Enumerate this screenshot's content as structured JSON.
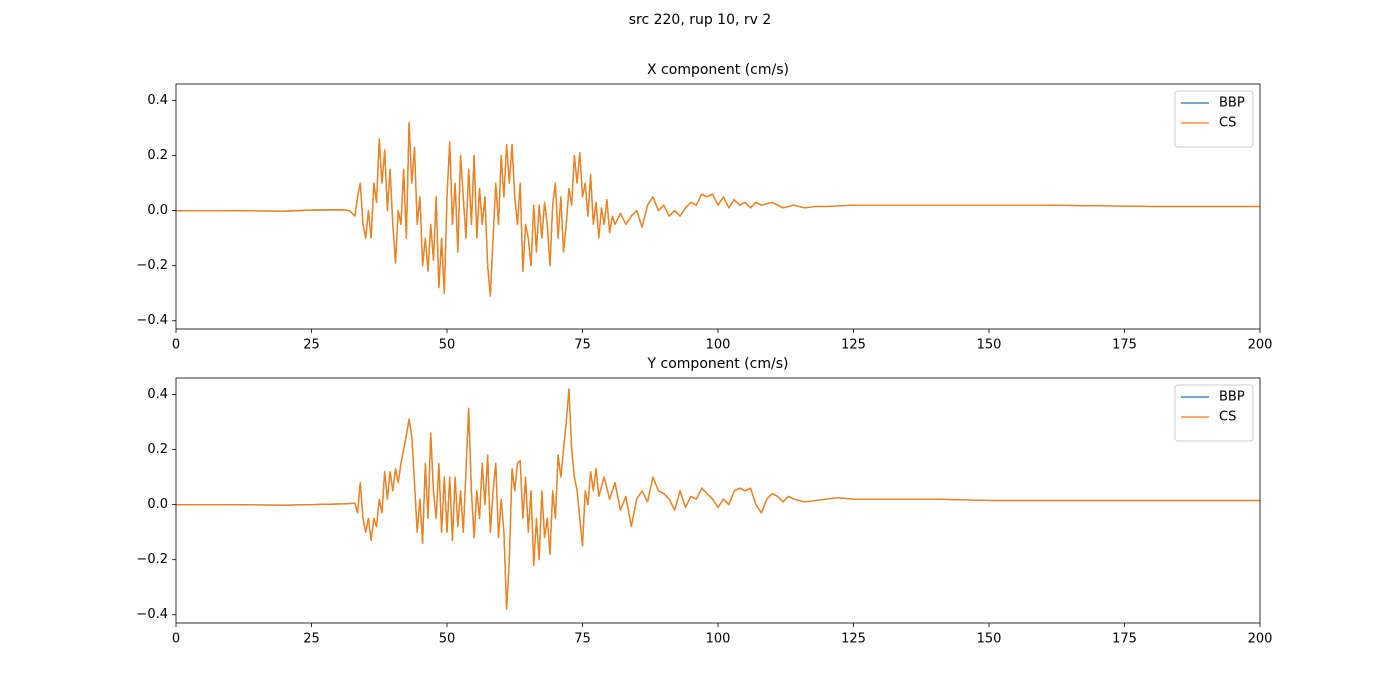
{
  "title": "src 220, rup 10, rv 2",
  "chart_data": [
    {
      "type": "line",
      "title": "X component (cm/s)",
      "legend": "upper right",
      "xlim": [
        0,
        200
      ],
      "ylim": [
        -0.43,
        0.46
      ],
      "xticks": [
        0,
        25,
        50,
        75,
        100,
        125,
        150,
        175,
        200
      ],
      "yticks": [
        {
          "value": -0.4,
          "label": "−0.4"
        },
        {
          "value": -0.2,
          "label": "−0.2"
        },
        {
          "value": 0,
          "label": "0.0"
        },
        0.2,
        0.4
      ],
      "x": [
        0,
        10,
        20,
        25,
        31,
        32,
        33,
        33.5,
        34,
        34.5,
        35,
        35.5,
        36,
        36.5,
        37,
        37.5,
        38,
        38.5,
        39,
        39.5,
        40,
        40.5,
        41,
        41.5,
        42,
        42.5,
        43,
        43.5,
        44,
        44.5,
        45,
        45.5,
        46,
        46.5,
        47,
        47.5,
        48,
        48.5,
        49,
        49.5,
        50,
        50.5,
        51,
        51.5,
        52,
        52.5,
        53,
        53.5,
        54,
        54.5,
        55,
        55.5,
        56,
        56.5,
        57,
        57.5,
        58,
        58.5,
        59,
        59.5,
        60,
        60.5,
        61,
        61.5,
        62,
        62.5,
        63,
        63.5,
        64,
        64.5,
        65,
        65.5,
        66,
        66.5,
        67,
        67.5,
        68,
        68.5,
        69,
        69.5,
        70,
        70.5,
        71,
        71.5,
        72,
        72.5,
        73,
        73.5,
        74,
        74.5,
        75,
        75.5,
        76,
        76.5,
        77,
        77.5,
        78,
        78.5,
        79,
        79.5,
        80,
        80.5,
        81,
        82,
        83,
        84,
        85,
        86,
        87,
        88,
        89,
        90,
        91,
        92,
        93,
        94,
        95,
        96,
        97,
        98,
        99,
        100,
        101,
        102,
        103,
        104,
        105,
        106,
        107,
        108,
        110,
        112,
        114,
        116,
        118,
        120,
        125,
        140,
        160,
        180,
        200
      ],
      "series": [
        {
          "name": "BBP",
          "color": "#1f77b4",
          "values": [
            0,
            0,
            -0.002,
            0.002,
            0.003,
            0,
            -0.02,
            0.05,
            0.1,
            -0.05,
            -0.1,
            0,
            -0.1,
            0.1,
            0.03,
            0.26,
            0.1,
            0.22,
            0,
            0.15,
            -0.05,
            -0.19,
            0,
            -0.05,
            0.15,
            -0.1,
            0.32,
            0.1,
            0.23,
            -0.05,
            0.05,
            -0.2,
            -0.1,
            -0.22,
            -0.05,
            -0.18,
            0.05,
            -0.28,
            -0.1,
            -0.3,
            0.05,
            0.25,
            -0.05,
            0.1,
            -0.15,
            0.2,
            0.05,
            -0.1,
            0.15,
            -0.05,
            0.2,
            -0.1,
            0.08,
            -0.05,
            0.05,
            -0.2,
            -0.31,
            -0.1,
            0.1,
            -0.05,
            0.2,
            0.05,
            0.24,
            0.1,
            0.24,
            0.05,
            -0.05,
            0.1,
            -0.22,
            -0.05,
            -0.1,
            -0.2,
            0.02,
            -0.15,
            0.02,
            -0.1,
            0.03,
            -0.05,
            -0.2,
            0.02,
            0.1,
            -0.1,
            0.05,
            -0.15,
            -0.05,
            0.08,
            0.02,
            0.2,
            0.1,
            0.21,
            0.05,
            0.1,
            -0.02,
            0.13,
            -0.05,
            0.03,
            -0.1,
            0.01,
            -0.05,
            0.04,
            -0.08,
            -0.02,
            -0.05,
            -0.01,
            -0.05,
            -0.02,
            0,
            -0.06,
            0.02,
            0.05,
            0,
            0.02,
            -0.02,
            0,
            -0.02,
            0.01,
            0.03,
            0.02,
            0.06,
            0.05,
            0.06,
            0.02,
            0.05,
            0.01,
            0.04,
            0.02,
            0.03,
            0.01,
            0.03,
            0.02,
            0.03,
            0.01,
            0.02,
            0.01,
            0.015,
            0.015,
            0.02,
            0.02,
            0.02,
            0.015,
            0.015
          ]
        },
        {
          "name": "CS",
          "color": "#ff7f0e",
          "values": [
            0,
            0,
            -0.002,
            0.002,
            0.003,
            0,
            -0.02,
            0.05,
            0.1,
            -0.05,
            -0.1,
            0,
            -0.1,
            0.1,
            0.03,
            0.26,
            0.1,
            0.22,
            0,
            0.15,
            -0.05,
            -0.19,
            0,
            -0.05,
            0.15,
            -0.1,
            0.32,
            0.1,
            0.23,
            -0.05,
            0.05,
            -0.2,
            -0.1,
            -0.22,
            -0.05,
            -0.18,
            0.05,
            -0.28,
            -0.1,
            -0.3,
            0.05,
            0.25,
            -0.05,
            0.1,
            -0.15,
            0.2,
            0.05,
            -0.1,
            0.15,
            -0.05,
            0.2,
            -0.1,
            0.08,
            -0.05,
            0.05,
            -0.2,
            -0.31,
            -0.1,
            0.1,
            -0.05,
            0.2,
            0.05,
            0.24,
            0.1,
            0.24,
            0.05,
            -0.05,
            0.1,
            -0.22,
            -0.05,
            -0.1,
            -0.2,
            0.02,
            -0.15,
            0.02,
            -0.1,
            0.03,
            -0.05,
            -0.2,
            0.02,
            0.1,
            -0.1,
            0.05,
            -0.15,
            -0.05,
            0.08,
            0.02,
            0.2,
            0.1,
            0.21,
            0.05,
            0.1,
            -0.02,
            0.13,
            -0.05,
            0.03,
            -0.1,
            0.01,
            -0.05,
            0.04,
            -0.08,
            -0.02,
            -0.05,
            -0.01,
            -0.05,
            -0.02,
            0,
            -0.06,
            0.02,
            0.05,
            0,
            0.02,
            -0.02,
            0,
            -0.02,
            0.01,
            0.03,
            0.02,
            0.06,
            0.05,
            0.06,
            0.02,
            0.05,
            0.01,
            0.04,
            0.02,
            0.03,
            0.01,
            0.03,
            0.02,
            0.03,
            0.01,
            0.02,
            0.01,
            0.015,
            0.015,
            0.02,
            0.02,
            0.02,
            0.015,
            0.015
          ]
        }
      ]
    },
    {
      "type": "line",
      "title": "Y component (cm/s)",
      "legend": "upper right",
      "xlim": [
        0,
        200
      ],
      "ylim": [
        -0.43,
        0.46
      ],
      "xticks": [
        0,
        25,
        50,
        75,
        100,
        125,
        150,
        175,
        200
      ],
      "yticks": [
        {
          "value": -0.4,
          "label": "−0.4"
        },
        {
          "value": -0.2,
          "label": "−0.2"
        },
        {
          "value": 0,
          "label": "0.0"
        },
        0.2,
        0.4
      ],
      "x": [
        0,
        10,
        20,
        25,
        31,
        33,
        33.5,
        34,
        34.5,
        35,
        35.5,
        36,
        36.5,
        37,
        37.5,
        38,
        38.5,
        39,
        39.5,
        40,
        40.5,
        41,
        41.5,
        42,
        42.5,
        43,
        43.5,
        44,
        44.5,
        45,
        45.5,
        46,
        46.5,
        47,
        47.5,
        48,
        48.5,
        49,
        49.5,
        50,
        50.5,
        51,
        51.5,
        52,
        52.5,
        53,
        53.5,
        54,
        54.5,
        55,
        55.5,
        56,
        56.5,
        57,
        57.5,
        58,
        58.5,
        59,
        59.5,
        60,
        60.5,
        61,
        61.5,
        62,
        62.5,
        63,
        63.5,
        64,
        64.5,
        65,
        65.5,
        66,
        66.5,
        67,
        67.5,
        68,
        68.5,
        69,
        69.5,
        70,
        70.5,
        71,
        71.5,
        72,
        72.5,
        73,
        73.5,
        74,
        74.5,
        75,
        75.5,
        76,
        76.5,
        77,
        77.5,
        78,
        79,
        80,
        81,
        82,
        83,
        84,
        85,
        86,
        87,
        88,
        89,
        90,
        91,
        92,
        93,
        94,
        95,
        96,
        97,
        98,
        99,
        100,
        101,
        102,
        103,
        104,
        105,
        106,
        107,
        108,
        109,
        110,
        111,
        112,
        113,
        114,
        116,
        118,
        120,
        122,
        125,
        140,
        150,
        175,
        200
      ],
      "series": [
        {
          "name": "BBP",
          "color": "#1f77b4",
          "values": [
            0,
            0,
            -0.002,
            0,
            0.003,
            0.005,
            -0.03,
            0.08,
            -0.05,
            -0.1,
            -0.05,
            -0.13,
            -0.05,
            -0.08,
            0.02,
            -0.03,
            0.12,
            0.02,
            0.12,
            0.05,
            0.13,
            0.08,
            0.15,
            0.2,
            0.25,
            0.31,
            0.25,
            0.08,
            -0.1,
            0.02,
            -0.14,
            0.15,
            -0.05,
            0.26,
            0.05,
            -0.05,
            0.15,
            -0.1,
            0.1,
            -0.1,
            0.1,
            -0.13,
            0.1,
            -0.08,
            0.05,
            -0.1,
            0.12,
            0.35,
            0.05,
            -0.12,
            0.05,
            -0.05,
            0.15,
            0,
            0.18,
            -0.1,
            0.05,
            0.15,
            -0.12,
            0.02,
            -0.1,
            -0.38,
            -0.2,
            0.13,
            0.05,
            0.15,
            0.16,
            -0.05,
            0.1,
            -0.1,
            0.05,
            -0.22,
            -0.05,
            -0.2,
            0.05,
            -0.12,
            -0.05,
            -0.18,
            0.05,
            -0.05,
            0.18,
            0.1,
            0.2,
            0.3,
            0.42,
            0.2,
            0.1,
            0.05,
            -0.05,
            -0.15,
            0.05,
            0,
            0.12,
            0.05,
            0.13,
            0.03,
            0.1,
            0.02,
            0.08,
            -0.02,
            0.03,
            -0.08,
            0.02,
            0.05,
            0.01,
            0.1,
            0.05,
            0.04,
            0.02,
            -0.02,
            0.05,
            -0.01,
            0.03,
            0.02,
            0.06,
            0.04,
            0.02,
            -0.01,
            0.02,
            0,
            0.05,
            0.06,
            0.05,
            0.06,
            0,
            -0.03,
            0.02,
            0.04,
            0.03,
            0.01,
            0.03,
            0.02,
            0.01,
            0.015,
            0.02,
            0.025,
            0.02,
            0.02,
            0.015,
            0.015,
            0.015
          ]
        },
        {
          "name": "CS",
          "color": "#ff7f0e",
          "values": [
            0,
            0,
            -0.002,
            0,
            0.003,
            0.005,
            -0.03,
            0.08,
            -0.05,
            -0.1,
            -0.05,
            -0.13,
            -0.05,
            -0.08,
            0.02,
            -0.03,
            0.12,
            0.02,
            0.12,
            0.05,
            0.13,
            0.08,
            0.15,
            0.2,
            0.25,
            0.31,
            0.25,
            0.08,
            -0.1,
            0.02,
            -0.14,
            0.15,
            -0.05,
            0.26,
            0.05,
            -0.05,
            0.15,
            -0.1,
            0.1,
            -0.1,
            0.1,
            -0.13,
            0.1,
            -0.08,
            0.05,
            -0.1,
            0.12,
            0.35,
            0.05,
            -0.12,
            0.05,
            -0.05,
            0.15,
            0,
            0.18,
            -0.1,
            0.05,
            0.15,
            -0.12,
            0.02,
            -0.1,
            -0.38,
            -0.2,
            0.13,
            0.05,
            0.15,
            0.16,
            -0.05,
            0.1,
            -0.1,
            0.05,
            -0.22,
            -0.05,
            -0.2,
            0.05,
            -0.12,
            -0.05,
            -0.18,
            0.05,
            -0.05,
            0.18,
            0.1,
            0.2,
            0.3,
            0.42,
            0.2,
            0.1,
            0.05,
            -0.05,
            -0.15,
            0.05,
            0,
            0.12,
            0.05,
            0.13,
            0.03,
            0.1,
            0.02,
            0.08,
            -0.02,
            0.03,
            -0.08,
            0.02,
            0.05,
            0.01,
            0.1,
            0.05,
            0.04,
            0.02,
            -0.02,
            0.05,
            -0.01,
            0.03,
            0.02,
            0.06,
            0.04,
            0.02,
            -0.01,
            0.02,
            0,
            0.05,
            0.06,
            0.05,
            0.06,
            0,
            -0.03,
            0.02,
            0.04,
            0.03,
            0.01,
            0.03,
            0.02,
            0.01,
            0.015,
            0.02,
            0.025,
            0.02,
            0.02,
            0.015,
            0.015,
            0.015
          ]
        }
      ]
    }
  ]
}
